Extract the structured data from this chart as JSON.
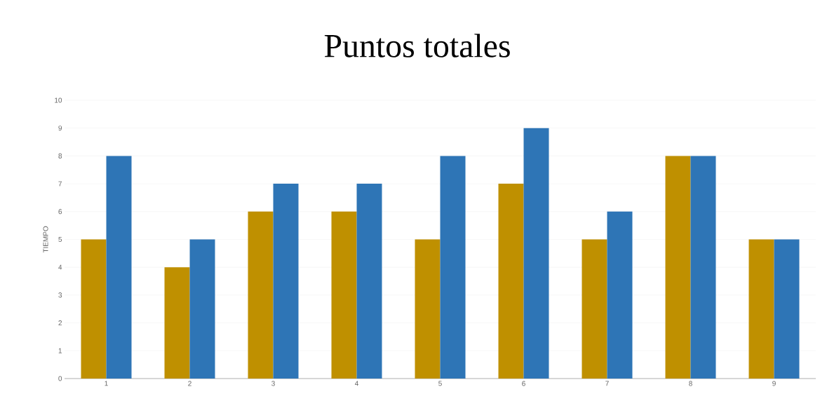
{
  "chart_data": {
    "type": "bar",
    "title": "Puntos totales",
    "ylabel": "TIEMPO",
    "categories": [
      "1",
      "2",
      "3",
      "4",
      "5",
      "6",
      "7",
      "8",
      "9"
    ],
    "series": [
      {
        "color": "#bf9000",
        "values": [
          5,
          4,
          6,
          6,
          5,
          7,
          5,
          8,
          5
        ]
      },
      {
        "color": "#2e75b6",
        "values": [
          8,
          5,
          7,
          7,
          8,
          9,
          6,
          8,
          5
        ]
      }
    ],
    "ylim": [
      0,
      10
    ],
    "yticks": [
      0,
      1,
      2,
      3,
      4,
      5,
      6,
      7,
      8,
      9,
      10
    ],
    "grid": "y",
    "legend": false
  }
}
